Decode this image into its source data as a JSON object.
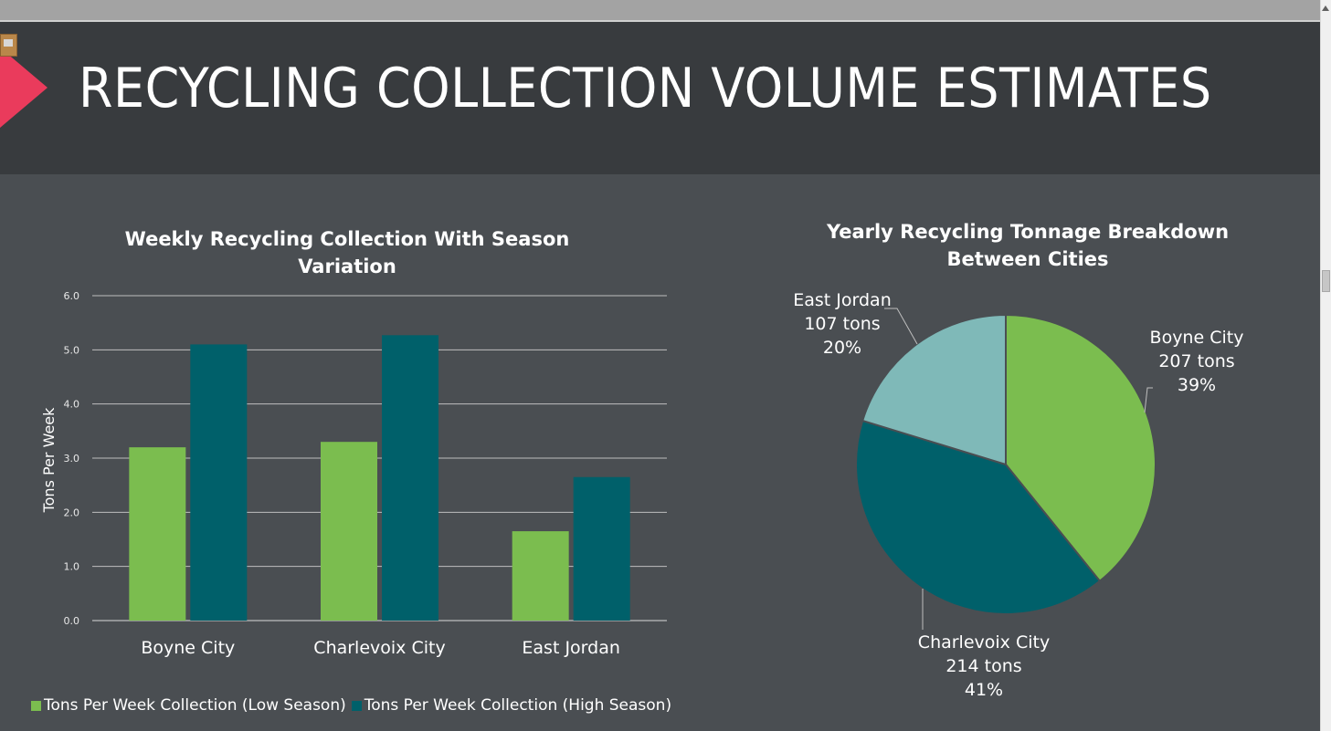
{
  "page": {
    "title": "RECYCLING COLLECTION VOLUME ESTIMATES",
    "colors": {
      "accent": "#ea3b5c",
      "header_bg": "#383b3e",
      "slide_bg": "#4a4e52"
    }
  },
  "chart_data": [
    {
      "type": "bar",
      "title": "Weekly Recycling Collection With Season Variation",
      "xlabel": "",
      "ylabel": "Tons Per Week",
      "ylim": [
        0,
        6
      ],
      "yticks": [
        "0.0",
        "1.0",
        "2.0",
        "3.0",
        "4.0",
        "5.0",
        "6.0"
      ],
      "categories": [
        "Boyne City",
        "Charlevoix City",
        "East Jordan"
      ],
      "series": [
        {
          "name": "Tons Per Week Collection (Low Season)",
          "color": "#7bbd4f",
          "values": [
            3.2,
            3.3,
            1.65
          ]
        },
        {
          "name": "Tons Per Week Collection (High Season)",
          "color": "#00606a",
          "values": [
            5.1,
            5.27,
            2.65
          ]
        }
      ],
      "legend": "bottom",
      "grid": true
    },
    {
      "type": "pie",
      "title": "Yearly Recycling Tonnage Breakdown Between Cities",
      "slices": [
        {
          "name": "Boyne City",
          "value_label": "207 tons",
          "value": 207,
          "percent": "39%",
          "color": "#7bbd4f"
        },
        {
          "name": "Charlevoix City",
          "value_label": "214 tons",
          "value": 214,
          "percent": "41%",
          "color": "#00606a"
        },
        {
          "name": "East Jordan",
          "value_label": "107 tons",
          "value": 107,
          "percent": "20%",
          "color": "#7fb9b8"
        }
      ]
    }
  ]
}
